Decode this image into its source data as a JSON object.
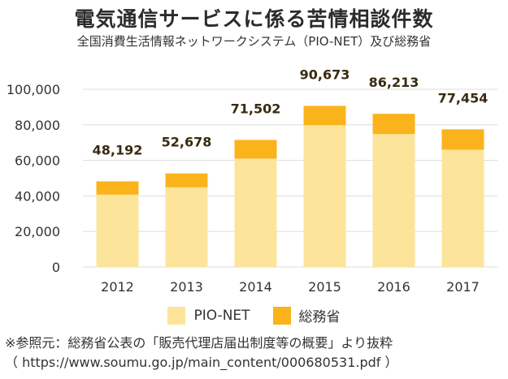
{
  "header": {
    "title": "電気通信サービスに係る苦情相談件数",
    "subtitle": "全国消費生活情報ネットワークシステム（PIO-NET）及び総務省"
  },
  "colors": {
    "pio_net": "#FCE59A",
    "soumusho": "#FBB31C",
    "grid": "#dddddd",
    "total_label": "#3a2a10"
  },
  "chart_data": {
    "type": "bar",
    "stacked": true,
    "categories": [
      "2012",
      "2013",
      "2014",
      "2015",
      "2016",
      "2017"
    ],
    "series": [
      {
        "name": "PIO-NET",
        "values": [
          40700,
          44800,
          61000,
          79800,
          74800,
          66000
        ]
      },
      {
        "name": "総務省",
        "values": [
          7492,
          7878,
          10502,
          10873,
          11413,
          11454
        ]
      }
    ],
    "totals": [
      48192,
      52678,
      71502,
      90673,
      86213,
      77454
    ],
    "total_labels": [
      "48,192",
      "52,678",
      "71,502",
      "90,673",
      "86,213",
      "77,454"
    ],
    "y_ticks": [
      0,
      20000,
      40000,
      60000,
      80000,
      100000
    ],
    "y_tick_labels": [
      "0",
      "20,000",
      "40,000",
      "60,000",
      "80,000",
      "100,000"
    ],
    "ylim": [
      0,
      100000
    ],
    "grid": true,
    "legend_position": "bottom"
  },
  "legend": {
    "items": [
      "PIO-NET",
      "総務省"
    ]
  },
  "footnote": {
    "line1": "※参照元：総務省公表の「販売代理店届出制度等の概要」より抜粋",
    "line2": "（ https://www.soumu.go.jp/main_content/000680531.pdf ）"
  }
}
